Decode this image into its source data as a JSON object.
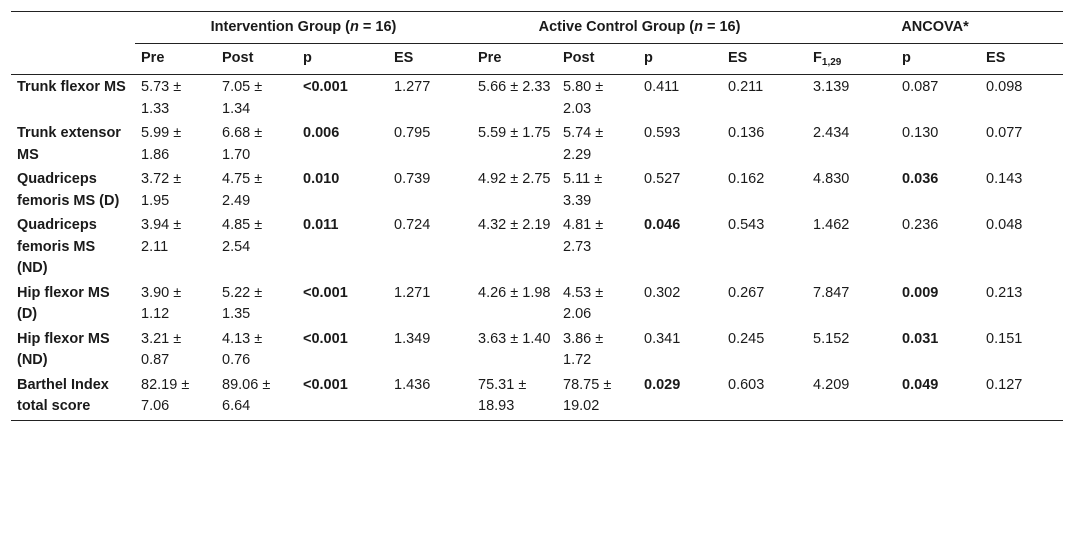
{
  "header": {
    "groups": [
      {
        "label": "Intervention Group (",
        "n_symbol": "n",
        "n_text": " = 16)"
      },
      {
        "label": "Active Control Group (",
        "n_symbol": "n",
        "n_text": " = 16)"
      },
      {
        "label": "ANCOVA*",
        "n_symbol": "",
        "n_text": ""
      }
    ],
    "columns": [
      "Pre",
      "Post",
      "p",
      "ES",
      "Pre",
      "Post",
      "p",
      "ES",
      "F",
      "p",
      "ES"
    ],
    "f_subscript": "1,29"
  },
  "rows": [
    {
      "label": "Trunk flexor MS",
      "cells": [
        "5.73 ± 1.33",
        "7.05 ± 1.34",
        "<0.001",
        "1.277",
        "5.66 ± 2.33",
        "5.80 ± 2.03",
        "0.411",
        "0.211",
        "3.139",
        "0.087",
        "0.098"
      ],
      "bold": [
        2
      ]
    },
    {
      "label": "Trunk extensor MS",
      "cells": [
        "5.99 ± 1.86",
        "6.68 ± 1.70",
        "0.006",
        "0.795",
        "5.59 ± 1.75",
        "5.74 ± 2.29",
        "0.593",
        "0.136",
        "2.434",
        "0.130",
        "0.077"
      ],
      "bold": [
        2
      ]
    },
    {
      "label": "Quadriceps femoris MS (D)",
      "cells": [
        "3.72 ± 1.95",
        "4.75 ± 2.49",
        "0.010",
        "0.739",
        "4.92 ± 2.75",
        "5.11 ± 3.39",
        "0.527",
        "0.162",
        "4.830",
        "0.036",
        "0.143"
      ],
      "bold": [
        2,
        9
      ]
    },
    {
      "label": "Quadriceps femoris MS (ND)",
      "cells": [
        "3.94 ± 2.11",
        "4.85 ± 2.54",
        "0.011",
        "0.724",
        "4.32 ± 2.19",
        "4.81 ± 2.73",
        "0.046",
        "0.543",
        "1.462",
        "0.236",
        "0.048"
      ],
      "bold": [
        2,
        6
      ]
    },
    {
      "label": "Hip flexor MS (D)",
      "cells": [
        "3.90 ± 1.12",
        "5.22 ± 1.35",
        "<0.001",
        "1.271",
        "4.26 ± 1.98",
        "4.53 ± 2.06",
        "0.302",
        "0.267",
        "7.847",
        "0.009",
        "0.213"
      ],
      "bold": [
        2,
        9
      ]
    },
    {
      "label": "Hip flexor MS (ND)",
      "cells": [
        "3.21 ± 0.87",
        "4.13 ± 0.76",
        "<0.001",
        "1.349",
        "3.63 ± 1.40",
        "3.86 ± 1.72",
        "0.341",
        "0.245",
        "5.152",
        "0.031",
        "0.151"
      ],
      "bold": [
        2,
        9
      ]
    },
    {
      "label": "Barthel Index total score",
      "cells": [
        "82.19 ± 7.06",
        "89.06 ± 6.64",
        "<0.001",
        "1.436",
        "75.31 ± 18.93",
        "78.75 ± 19.02",
        "0.029",
        "0.603",
        "4.209",
        "0.049",
        "0.127"
      ],
      "bold": [
        2,
        6,
        9
      ]
    }
  ]
}
